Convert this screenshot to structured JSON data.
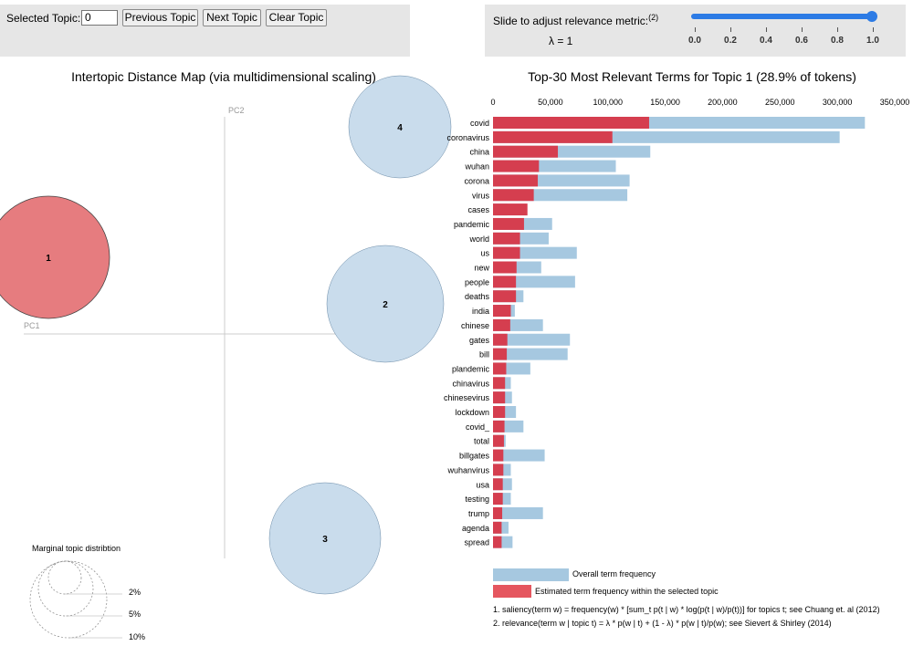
{
  "controls": {
    "selected_topic_label": "Selected Topic:",
    "selected_topic_value": "0",
    "prev_label": "Previous Topic",
    "next_label": "Next Topic",
    "clear_label": "Clear Topic",
    "slider_label": "Slide to adjust relevance metric:",
    "slider_footnote": "(2)",
    "lambda_text": "λ = 1",
    "lambda_value": 1,
    "lambda_ticks": [
      "0.0",
      "0.2",
      "0.4",
      "0.6",
      "0.8",
      "1.0"
    ]
  },
  "map": {
    "title": "Intertopic Distance Map (via multidimensional scaling)",
    "pc1_label": "PC1",
    "pc2_label": "PC2",
    "topics": [
      {
        "id": "1",
        "selected": true
      },
      {
        "id": "2",
        "selected": false
      },
      {
        "id": "3",
        "selected": false
      },
      {
        "id": "4",
        "selected": false
      }
    ],
    "marginal_title": "Marginal topic distribtion",
    "marginal_levels": [
      "2%",
      "5%",
      "10%"
    ]
  },
  "chart_data": {
    "type": "bar",
    "title": "Top-30 Most Relevant Terms for Topic 1 (28.9% of tokens)",
    "orientation": "horizontal",
    "xlim": [
      0,
      350000
    ],
    "x_ticks": [
      "0",
      "50,000",
      "100,000",
      "150,000",
      "200,000",
      "250,000",
      "300,000",
      "350,000"
    ],
    "categories": [
      "covid",
      "coronavirus",
      "china",
      "wuhan",
      "corona",
      "virus",
      "cases",
      "pandemic",
      "world",
      "us",
      "new",
      "people",
      "deaths",
      "india",
      "chinese",
      "gates",
      "bill",
      "plandemic",
      "chinavirus",
      "chinesevirus",
      "lockdown",
      "covid_",
      "total",
      "billgates",
      "wuhanvirus",
      "usa",
      "testing",
      "trump",
      "agenda",
      "spread"
    ],
    "series": [
      {
        "name": "Overall term frequency",
        "color": "#a6c8e0",
        "values": [
          324000,
          302000,
          137000,
          107000,
          119000,
          117000,
          12500,
          51500,
          48500,
          73000,
          42000,
          71500,
          26500,
          19000,
          43500,
          67000,
          65000,
          32500,
          15500,
          16500,
          20000,
          26500,
          11000,
          45000,
          15500,
          16500,
          15500,
          43500,
          13500,
          17000
        ]
      },
      {
        "name": "Estimated term frequency within the selected topic",
        "color": "#d53e4f",
        "values": [
          136000,
          104000,
          56500,
          40000,
          39000,
          35500,
          30000,
          27000,
          23500,
          23500,
          20500,
          20000,
          20000,
          15500,
          15000,
          12500,
          12000,
          11500,
          10500,
          10500,
          10500,
          10000,
          9500,
          9000,
          9000,
          8500,
          8500,
          8000,
          7500,
          7500
        ]
      }
    ]
  },
  "footnotes": [
    "1. saliency(term w) = frequency(w) * [sum_t p(t | w) * log(p(t | w)/p(t))] for topics t; see Chuang et. al (2012)",
    "2. relevance(term w | topic t) = λ * p(w | t) + (1 - λ) * p(w | t)/p(w); see Sievert & Shirley (2014)"
  ]
}
